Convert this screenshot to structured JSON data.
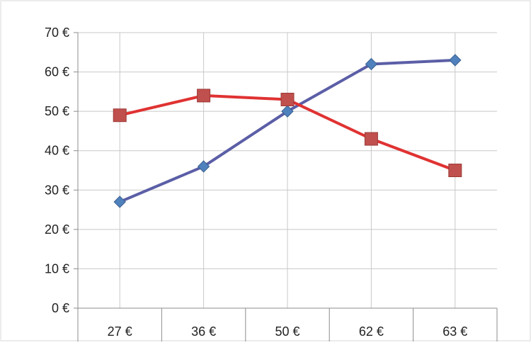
{
  "chart_data": {
    "type": "line",
    "title": "",
    "xlabel": "",
    "ylabel": "",
    "categories": [
      "27 €",
      "36 €",
      "50 €",
      "62 €",
      "63 €"
    ],
    "y_ticks": [
      "0 €",
      "10 €",
      "20 €",
      "30 €",
      "40 €",
      "50 €",
      "60 €",
      "70 €"
    ],
    "ylim": [
      0,
      70
    ],
    "grid": true,
    "legend": "none",
    "series": [
      {
        "values": [
          27,
          36,
          50,
          62,
          63
        ],
        "color": "#5b5ea6",
        "marker_color": "#4f81bd",
        "marker": "diamond"
      },
      {
        "values": [
          49,
          54,
          53,
          43,
          35
        ],
        "color": "#e03232",
        "marker_color": "#c0504d",
        "marker": "square"
      }
    ]
  }
}
